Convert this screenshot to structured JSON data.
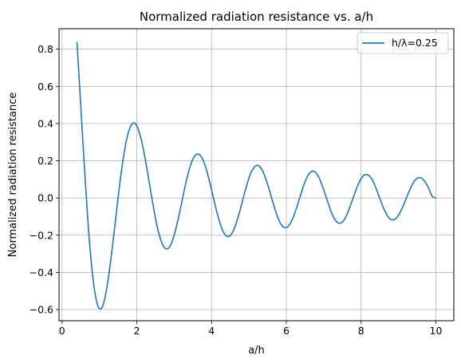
{
  "chart_data": {
    "type": "line",
    "title": "Normalized radiation resistance vs. a/h",
    "xlabel": "a/h",
    "ylabel": "Normalized radiation resistance",
    "xlim": [
      -0.08,
      10.48
    ],
    "ylim": [
      -0.66,
      0.91
    ],
    "xticks": [
      0,
      2,
      4,
      6,
      8,
      10
    ],
    "yticks": [
      -0.6,
      -0.4,
      -0.2,
      0.0,
      0.2,
      0.4,
      0.6,
      0.8
    ],
    "xtick_labels": [
      "0",
      "2",
      "4",
      "6",
      "8",
      "10"
    ],
    "ytick_labels": [
      "−0.6",
      "−0.4",
      "−0.2",
      "0.0",
      "0.2",
      "0.4",
      "0.6",
      "0.8"
    ],
    "grid": true,
    "legend": "top-right",
    "series": [
      {
        "name": "h/λ=0.25",
        "color": "#1f77b4",
        "x": [
          0.4,
          0.5,
          0.6,
          0.7,
          0.8,
          0.9,
          1.0,
          1.1,
          1.2,
          1.3,
          1.4,
          1.5,
          1.6,
          1.7,
          1.8,
          1.9,
          2.0,
          2.1,
          2.2,
          2.3,
          2.4,
          2.5,
          2.6,
          2.7,
          2.8,
          2.9,
          3.0,
          3.1,
          3.2,
          3.3,
          3.4,
          3.5,
          3.6,
          3.7,
          3.8,
          3.9,
          4.0,
          4.1,
          4.2,
          4.3,
          4.4,
          4.5,
          4.6,
          4.7,
          4.8,
          4.9,
          5.0,
          5.1,
          5.2,
          5.3,
          5.4,
          5.5,
          5.6,
          5.7,
          5.8,
          5.9,
          6.0,
          6.1,
          6.2,
          6.3,
          6.4,
          6.5,
          6.6,
          6.7,
          6.8,
          6.9,
          7.0,
          7.1,
          7.2,
          7.3,
          7.4,
          7.5,
          7.6,
          7.7,
          7.8,
          7.9,
          8.0,
          8.1,
          8.2,
          8.3,
          8.4,
          8.5,
          8.6,
          8.7,
          8.8,
          8.9,
          9.0,
          9.1,
          9.2,
          9.3,
          9.4,
          9.5,
          9.6,
          9.7,
          9.8,
          9.9,
          10.0
        ],
        "values": [
          0.839,
          0.502,
          0.162,
          -0.145,
          -0.381,
          -0.532,
          -0.595,
          -0.574,
          -0.482,
          -0.341,
          -0.173,
          0.001,
          0.161,
          0.286,
          0.369,
          0.403,
          0.388,
          0.329,
          0.237,
          0.123,
          0.003,
          -0.109,
          -0.198,
          -0.254,
          -0.274,
          -0.254,
          -0.2,
          -0.12,
          -0.026,
          0.07,
          0.151,
          0.209,
          0.235,
          0.228,
          0.19,
          0.125,
          0.044,
          -0.042,
          -0.119,
          -0.176,
          -0.205,
          -0.202,
          -0.168,
          -0.11,
          -0.037,
          0.04,
          0.107,
          0.154,
          0.175,
          0.166,
          0.13,
          0.073,
          0.005,
          -0.063,
          -0.119,
          -0.152,
          -0.159,
          -0.139,
          -0.096,
          -0.037,
          0.028,
          0.087,
          0.128,
          0.144,
          0.134,
          0.098,
          0.044,
          -0.016,
          -0.074,
          -0.116,
          -0.135,
          -0.129,
          -0.098,
          -0.049,
          0.008,
          0.062,
          0.104,
          0.125,
          0.122,
          0.097,
          0.052,
          -0.002,
          -0.054,
          -0.094,
          -0.116,
          -0.115,
          -0.093,
          -0.054,
          -0.006,
          0.043,
          0.083,
          0.106,
          0.108,
          0.09,
          0.055,
          0.01,
          -0.001
        ]
      }
    ]
  }
}
